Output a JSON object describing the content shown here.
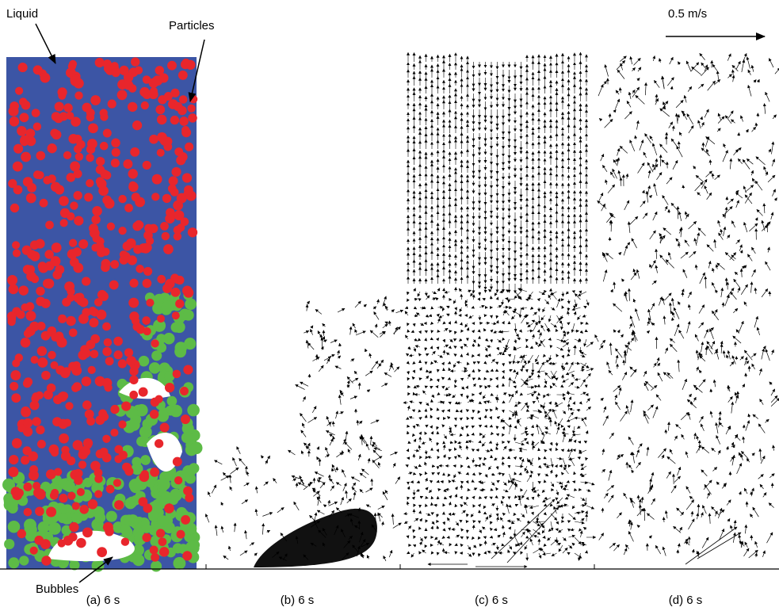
{
  "annotations": {
    "liquid": "Liquid",
    "particles": "Particles",
    "bubbles": "Bubbles",
    "scale": "0.5 m/s"
  },
  "panels": [
    {
      "caption": "(a) 6 s"
    },
    {
      "caption": "(b) 6 s"
    },
    {
      "caption": "(c) 6 s"
    },
    {
      "caption": "(d) 6 s"
    }
  ]
}
